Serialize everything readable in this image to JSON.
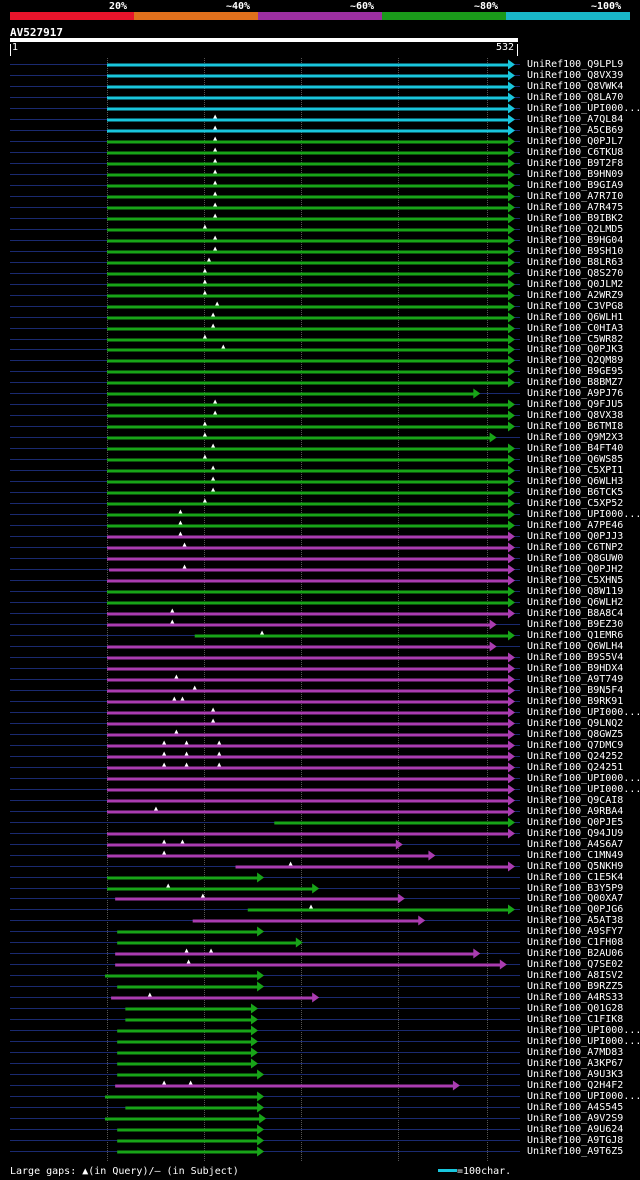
{
  "legend": {
    "segments": [
      {
        "label": "20%",
        "color": "#e8142b"
      },
      {
        "label": "~40%",
        "color": "#e0701c"
      },
      {
        "label": "~60%",
        "color": "#9c2fa0"
      },
      {
        "label": "~80%",
        "color": "#1a9a1a"
      },
      {
        "label": "~100%",
        "color": "#19b7c8"
      }
    ]
  },
  "query": {
    "name": "AV527917",
    "start": "1",
    "end": "532"
  },
  "colors": {
    "cyan": "#19c6dd",
    "green": "#18a418",
    "magenta": "#aa3cb0",
    "navy": "#1a2a70",
    "grid": "#555555"
  },
  "hits": [
    {
      "label": "UniRef100_Q9LPL9",
      "c": "cyan",
      "s": 0.0,
      "e": 1.0,
      "m": []
    },
    {
      "label": "UniRef100_Q8VX39",
      "c": "cyan",
      "s": 0.0,
      "e": 1.0,
      "m": []
    },
    {
      "label": "UniRef100_Q8VWK4",
      "c": "cyan",
      "s": 0.0,
      "e": 1.0,
      "m": []
    },
    {
      "label": "UniRef100_Q8LA70",
      "c": "cyan",
      "s": 0.0,
      "e": 1.0,
      "m": []
    },
    {
      "label": "UniRef100_UPI000...",
      "c": "cyan",
      "s": 0.0,
      "e": 1.0,
      "m": []
    },
    {
      "label": "UniRef100_A7QL84",
      "c": "cyan",
      "s": 0.0,
      "e": 1.0,
      "m": [
        0.265
      ]
    },
    {
      "label": "UniRef100_A5CB69",
      "c": "cyan",
      "s": 0.0,
      "e": 1.0,
      "m": [
        0.265
      ]
    },
    {
      "label": "UniRef100_Q0PJL7",
      "c": "green",
      "s": 0.0,
      "e": 1.0,
      "m": [
        0.265
      ]
    },
    {
      "label": "UniRef100_C6TKU8",
      "c": "green",
      "s": 0.0,
      "e": 1.0,
      "m": [
        0.265
      ]
    },
    {
      "label": "UniRef100_B9T2F8",
      "c": "green",
      "s": 0.0,
      "e": 1.0,
      "m": [
        0.265
      ]
    },
    {
      "label": "UniRef100_B9HN09",
      "c": "green",
      "s": 0.0,
      "e": 1.0,
      "m": [
        0.265
      ]
    },
    {
      "label": "UniRef100_B9GIA9",
      "c": "green",
      "s": 0.0,
      "e": 1.0,
      "m": [
        0.265
      ]
    },
    {
      "label": "UniRef100_A7R7I0",
      "c": "green",
      "s": 0.0,
      "e": 1.0,
      "m": [
        0.265
      ]
    },
    {
      "label": "UniRef100_A7R475",
      "c": "green",
      "s": 0.0,
      "e": 1.0,
      "m": [
        0.265
      ]
    },
    {
      "label": "UniRef100_B9IBK2",
      "c": "green",
      "s": 0.0,
      "e": 1.0,
      "m": [
        0.265
      ]
    },
    {
      "label": "UniRef100_Q2LMD5",
      "c": "green",
      "s": 0.0,
      "e": 1.0,
      "m": [
        0.24
      ]
    },
    {
      "label": "UniRef100_B9HG04",
      "c": "green",
      "s": 0.0,
      "e": 1.0,
      "m": [
        0.265
      ]
    },
    {
      "label": "UniRef100_B9SH10",
      "c": "green",
      "s": 0.0,
      "e": 1.0,
      "m": [
        0.265
      ]
    },
    {
      "label": "UniRef100_B8LR63",
      "c": "green",
      "s": 0.0,
      "e": 1.0,
      "m": [
        0.25
      ]
    },
    {
      "label": "UniRef100_Q8S270",
      "c": "green",
      "s": 0.0,
      "e": 1.0,
      "m": [
        0.24
      ]
    },
    {
      "label": "UniRef100_Q0JLM2",
      "c": "green",
      "s": 0.0,
      "e": 1.0,
      "m": [
        0.24
      ]
    },
    {
      "label": "UniRef100_A2WRZ9",
      "c": "green",
      "s": 0.0,
      "e": 1.0,
      "m": [
        0.24
      ]
    },
    {
      "label": "UniRef100_C3VPG8",
      "c": "green",
      "s": 0.0,
      "e": 1.0,
      "m": [
        0.27
      ]
    },
    {
      "label": "UniRef100_Q6WLH1",
      "c": "green",
      "s": 0.0,
      "e": 1.0,
      "m": [
        0.26
      ]
    },
    {
      "label": "UniRef100_C0HIA3",
      "c": "green",
      "s": 0.0,
      "e": 1.0,
      "m": [
        0.26
      ]
    },
    {
      "label": "UniRef100_C5WR82",
      "c": "green",
      "s": 0.0,
      "e": 1.0,
      "m": [
        0.24
      ]
    },
    {
      "label": "UniRef100_Q0PJK3",
      "c": "green",
      "s": 0.0,
      "e": 1.0,
      "m": [
        0.285
      ]
    },
    {
      "label": "UniRef100_Q2QM89",
      "c": "green",
      "s": 0.0,
      "e": 1.0,
      "m": []
    },
    {
      "label": "UniRef100_B9GE95",
      "c": "green",
      "s": 0.0,
      "e": 1.0,
      "m": []
    },
    {
      "label": "UniRef100_B8BMZ7",
      "c": "green",
      "s": 0.0,
      "e": 1.0,
      "m": []
    },
    {
      "label": "UniRef100_A9PJ76",
      "c": "green",
      "s": 0.0,
      "e": 0.915,
      "m": []
    },
    {
      "label": "UniRef100_Q9FJU5",
      "c": "green",
      "s": 0.0,
      "e": 1.0,
      "m": [
        0.265
      ]
    },
    {
      "label": "UniRef100_Q8VX38",
      "c": "green",
      "s": 0.0,
      "e": 1.0,
      "m": [
        0.265
      ]
    },
    {
      "label": "UniRef100_B6TMI8",
      "c": "green",
      "s": 0.0,
      "e": 1.0,
      "m": [
        0.24
      ]
    },
    {
      "label": "UniRef100_Q9M2X3",
      "c": "green",
      "s": 0.0,
      "e": 0.955,
      "m": [
        0.24
      ]
    },
    {
      "label": "UniRef100_B4FT40",
      "c": "green",
      "s": 0.0,
      "e": 1.0,
      "m": [
        0.26
      ]
    },
    {
      "label": "UniRef100_Q6WS85",
      "c": "green",
      "s": 0.0,
      "e": 1.0,
      "m": [
        0.24
      ]
    },
    {
      "label": "UniRef100_C5XPI1",
      "c": "green",
      "s": 0.0,
      "e": 1.0,
      "m": [
        0.26
      ]
    },
    {
      "label": "UniRef100_Q6WLH3",
      "c": "green",
      "s": 0.0,
      "e": 1.0,
      "m": [
        0.26
      ]
    },
    {
      "label": "UniRef100_B6TCK5",
      "c": "green",
      "s": 0.0,
      "e": 1.0,
      "m": [
        0.26
      ]
    },
    {
      "label": "UniRef100_C5XP52",
      "c": "green",
      "s": 0.0,
      "e": 1.0,
      "m": [
        0.24
      ]
    },
    {
      "label": "UniRef100_UPI000...",
      "c": "green",
      "s": 0.0,
      "e": 1.0,
      "m": [
        0.18
      ]
    },
    {
      "label": "UniRef100_A7PE46",
      "c": "green",
      "s": 0.0,
      "e": 1.0,
      "m": [
        0.18
      ]
    },
    {
      "label": "UniRef100_Q0PJJ3",
      "c": "magenta",
      "s": 0.0,
      "e": 1.0,
      "m": [
        0.18
      ]
    },
    {
      "label": "UniRef100_C6TNP2",
      "c": "magenta",
      "s": 0.0,
      "e": 1.0,
      "m": [
        0.19
      ]
    },
    {
      "label": "UniRef100_Q8GUW0",
      "c": "magenta",
      "s": 0.0,
      "e": 1.0,
      "m": []
    },
    {
      "label": "UniRef100_Q0PJH2",
      "c": "magenta",
      "s": 0.005,
      "e": 1.0,
      "m": [
        0.19
      ]
    },
    {
      "label": "UniRef100_C5XHN5",
      "c": "magenta",
      "s": 0.0,
      "e": 1.0,
      "m": []
    },
    {
      "label": "UniRef100_Q8W119",
      "c": "green",
      "s": 0.0,
      "e": 1.0,
      "m": []
    },
    {
      "label": "UniRef100_Q6WLH2",
      "c": "green",
      "s": 0.0,
      "e": 1.0,
      "m": []
    },
    {
      "label": "UniRef100_B8A8C4",
      "c": "magenta",
      "s": 0.0,
      "e": 1.0,
      "m": [
        0.16
      ]
    },
    {
      "label": "UniRef100_B9EZ30",
      "c": "magenta",
      "s": 0.0,
      "e": 0.955,
      "m": [
        0.16
      ]
    },
    {
      "label": "UniRef100_Q1EMR6",
      "c": "green",
      "s": 0.215,
      "e": 1.0,
      "m": [
        0.38
      ]
    },
    {
      "label": "UniRef100_Q6WLH4",
      "c": "magenta",
      "s": 0.0,
      "e": 0.955,
      "m": []
    },
    {
      "label": "UniRef100_B9S5V4",
      "c": "magenta",
      "s": 0.0,
      "e": 1.0,
      "m": []
    },
    {
      "label": "UniRef100_B9HDX4",
      "c": "magenta",
      "s": 0.0,
      "e": 1.0,
      "m": []
    },
    {
      "label": "UniRef100_A9T749",
      "c": "magenta",
      "s": 0.0,
      "e": 1.0,
      "m": [
        0.17
      ]
    },
    {
      "label": "UniRef100_B9N5F4",
      "c": "magenta",
      "s": 0.0,
      "e": 1.0,
      "m": [
        0.215
      ]
    },
    {
      "label": "UniRef100_B9RK91",
      "c": "magenta",
      "s": 0.0,
      "e": 1.0,
      "m": [
        0.165,
        0.185
      ]
    },
    {
      "label": "UniRef100_UPI000...",
      "c": "magenta",
      "s": 0.0,
      "e": 1.0,
      "m": [
        0.26
      ]
    },
    {
      "label": "UniRef100_Q9LNQ2",
      "c": "magenta",
      "s": 0.0,
      "e": 1.0,
      "m": [
        0.26
      ]
    },
    {
      "label": "UniRef100_Q8GWZ5",
      "c": "magenta",
      "s": 0.0,
      "e": 1.0,
      "m": [
        0.17
      ]
    },
    {
      "label": "UniRef100_Q7DMC9",
      "c": "magenta",
      "s": 0.0,
      "e": 1.0,
      "m": [
        0.14,
        0.195,
        0.275
      ]
    },
    {
      "label": "UniRef100_Q24252",
      "c": "magenta",
      "s": 0.0,
      "e": 1.0,
      "m": [
        0.14,
        0.195,
        0.275
      ]
    },
    {
      "label": "UniRef100_Q24251",
      "c": "magenta",
      "s": 0.0,
      "e": 1.0,
      "m": [
        0.14,
        0.195,
        0.275
      ]
    },
    {
      "label": "UniRef100_UPI000...",
      "c": "magenta",
      "s": 0.0,
      "e": 1.0,
      "m": []
    },
    {
      "label": "UniRef100_UPI000...",
      "c": "magenta",
      "s": 0.0,
      "e": 1.0,
      "m": []
    },
    {
      "label": "UniRef100_Q9CAI8",
      "c": "magenta",
      "s": 0.0,
      "e": 1.0,
      "m": []
    },
    {
      "label": "UniRef100_A9RBA4",
      "c": "magenta",
      "s": 0.0,
      "e": 1.0,
      "m": [
        0.12
      ]
    },
    {
      "label": "UniRef100_Q0PJE5",
      "c": "green",
      "s": 0.41,
      "e": 1.0,
      "m": []
    },
    {
      "label": "UniRef100_Q94JU9",
      "c": "magenta",
      "s": 0.0,
      "e": 1.0,
      "m": []
    },
    {
      "label": "UniRef100_A4S6A7",
      "c": "magenta",
      "s": 0.0,
      "e": 0.725,
      "m": [
        0.14,
        0.185
      ]
    },
    {
      "label": "UniRef100_C1MN49",
      "c": "magenta",
      "s": 0.0,
      "e": 0.805,
      "m": [
        0.14
      ]
    },
    {
      "label": "UniRef100_Q5NKH9",
      "c": "magenta",
      "s": 0.315,
      "e": 1.0,
      "m": [
        0.45
      ]
    },
    {
      "label": "UniRef100_C1E5K4",
      "c": "green",
      "s": 0.0,
      "e": 0.385,
      "m": []
    },
    {
      "label": "UniRef100_B3Y5P9",
      "c": "green",
      "s": 0.0,
      "e": 0.52,
      "m": [
        0.15
      ]
    },
    {
      "label": "UniRef100_Q00XA7",
      "c": "magenta",
      "s": 0.02,
      "e": 0.73,
      "m": [
        0.235
      ]
    },
    {
      "label": "UniRef100_Q0PJG6",
      "c": "green",
      "s": 0.345,
      "e": 1.0,
      "m": [
        0.5
      ]
    },
    {
      "label": "UniRef100_A5AT38",
      "c": "magenta",
      "s": 0.21,
      "e": 0.78,
      "m": []
    },
    {
      "label": "UniRef100_A9SFY7",
      "c": "green",
      "s": 0.025,
      "e": 0.385,
      "m": []
    },
    {
      "label": "UniRef100_C1FH08",
      "c": "green",
      "s": 0.025,
      "e": 0.48,
      "m": []
    },
    {
      "label": "UniRef100_B2AU06",
      "c": "magenta",
      "s": 0.02,
      "e": 0.915,
      "m": [
        0.195,
        0.255
      ]
    },
    {
      "label": "UniRef100_Q7SE02",
      "c": "magenta",
      "s": 0.02,
      "e": 0.98,
      "m": [
        0.2
      ]
    },
    {
      "label": "UniRef100_A8ISV2",
      "c": "green",
      "s": -0.005,
      "e": 0.385,
      "m": []
    },
    {
      "label": "UniRef100_B9RZZ5",
      "c": "green",
      "s": 0.025,
      "e": 0.385,
      "m": []
    },
    {
      "label": "UniRef100_A4RS33",
      "c": "magenta",
      "s": 0.01,
      "e": 0.52,
      "m": [
        0.105
      ]
    },
    {
      "label": "UniRef100_Q01G28",
      "c": "green",
      "s": 0.045,
      "e": 0.37,
      "m": []
    },
    {
      "label": "UniRef100_C1FIK8",
      "c": "green",
      "s": 0.045,
      "e": 0.37,
      "m": []
    },
    {
      "label": "UniRef100_UPI000...",
      "c": "green",
      "s": 0.025,
      "e": 0.37,
      "m": []
    },
    {
      "label": "UniRef100_UPI000...",
      "c": "green",
      "s": 0.025,
      "e": 0.37,
      "m": []
    },
    {
      "label": "UniRef100_A7MD83",
      "c": "green",
      "s": 0.025,
      "e": 0.37,
      "m": []
    },
    {
      "label": "UniRef100_A3KP67",
      "c": "green",
      "s": 0.025,
      "e": 0.37,
      "m": []
    },
    {
      "label": "UniRef100_A9U3K3",
      "c": "green",
      "s": 0.025,
      "e": 0.385,
      "m": []
    },
    {
      "label": "UniRef100_Q2H4F2",
      "c": "magenta",
      "s": 0.02,
      "e": 0.865,
      "m": [
        0.14,
        0.205
      ]
    },
    {
      "label": "UniRef100_UPI000...",
      "c": "green",
      "s": -0.005,
      "e": 0.385,
      "m": []
    },
    {
      "label": "UniRef100_A4S545",
      "c": "green",
      "s": 0.045,
      "e": 0.385,
      "m": []
    },
    {
      "label": "UniRef100_A9V2S9",
      "c": "green",
      "s": -0.005,
      "e": 0.39,
      "m": []
    },
    {
      "label": "UniRef100_A9U624",
      "c": "green",
      "s": 0.025,
      "e": 0.385,
      "m": []
    },
    {
      "label": "UniRef100_A9TGJ8",
      "c": "green",
      "s": 0.025,
      "e": 0.385,
      "m": []
    },
    {
      "label": "UniRef100_A9T6Z5",
      "c": "green",
      "s": 0.025,
      "e": 0.385,
      "m": []
    }
  ],
  "footer": {
    "gaps_text": "Large gaps: ▲(in Query)/– (in Subject)",
    "scale_text": "=100char."
  }
}
